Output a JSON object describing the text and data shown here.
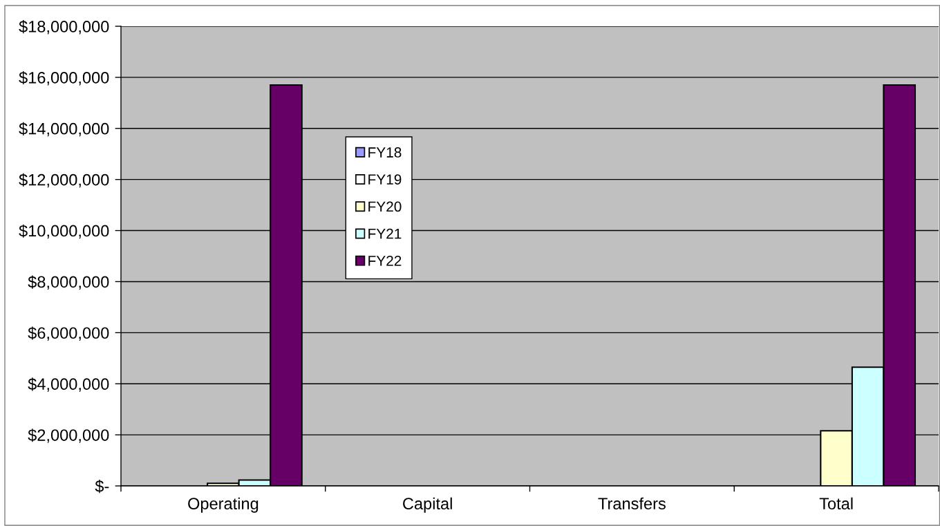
{
  "chart_data": {
    "type": "bar",
    "categories": [
      "Operating",
      "Capital",
      "Transfers",
      "Total"
    ],
    "series": [
      {
        "name": "FY18",
        "color": "#9999ff",
        "values": [
          null,
          null,
          null,
          null
        ]
      },
      {
        "name": "FY19",
        "color": "#ffffff",
        "values": [
          null,
          null,
          null,
          null
        ]
      },
      {
        "name": "FY20",
        "color": "#ffffcc",
        "values": [
          100000,
          null,
          null,
          2160000
        ]
      },
      {
        "name": "FY21",
        "color": "#ccffff",
        "values": [
          230000,
          null,
          null,
          4650000
        ]
      },
      {
        "name": "FY22",
        "color": "#660066",
        "values": [
          15700000,
          null,
          null,
          15700000
        ]
      }
    ],
    "ylim": [
      0,
      18000000
    ],
    "yticks": [
      {
        "value": 0,
        "label": "$-"
      },
      {
        "value": 2000000,
        "label": "$2,000,000"
      },
      {
        "value": 4000000,
        "label": "$4,000,000"
      },
      {
        "value": 6000000,
        "label": "$6,000,000"
      },
      {
        "value": 8000000,
        "label": "$8,000,000"
      },
      {
        "value": 10000000,
        "label": "$10,000,000"
      },
      {
        "value": 12000000,
        "label": "$12,000,000"
      },
      {
        "value": 14000000,
        "label": "$14,000,000"
      },
      {
        "value": 16000000,
        "label": "$16,000,000"
      },
      {
        "value": 18000000,
        "label": "$18,000,000"
      }
    ],
    "grid": "y",
    "legend": "left"
  }
}
